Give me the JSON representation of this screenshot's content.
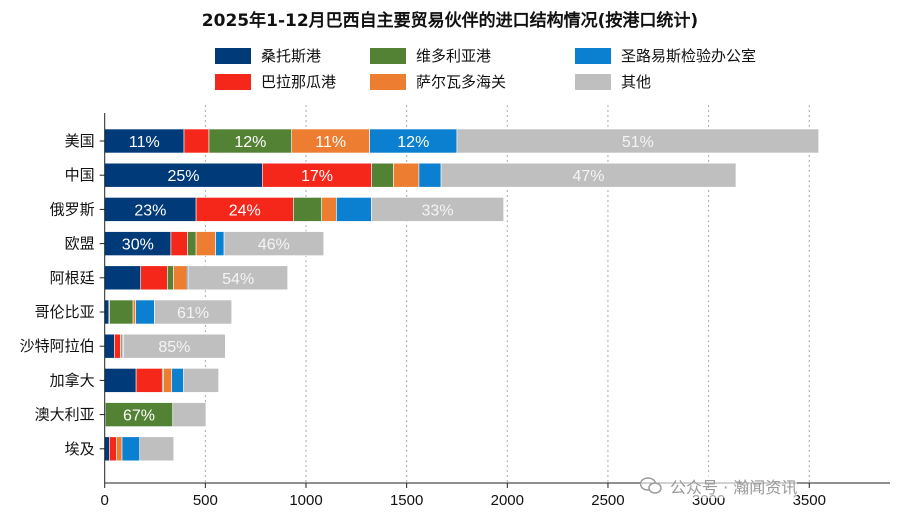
{
  "chart_data": {
    "type": "bar",
    "orientation": "horizontal",
    "stacked": true,
    "title": "2025年1-12月巴西自主要贸易伙伴的进口结构情况(按港口统计)",
    "xlabel": "",
    "ylabel": "",
    "xlim": [
      0,
      3500
    ],
    "xticks": [
      "0",
      "500",
      "1000",
      "1500",
      "2000",
      "2500",
      "3000",
      "3500"
    ],
    "grid": "vertical dotted",
    "legend": "top",
    "categories": [
      "美国",
      "中国",
      "俄罗斯",
      "欧盟",
      "阿根廷",
      "哥伦比亚",
      "沙特阿拉伯",
      "加拿大",
      "澳大利亚",
      "埃及"
    ],
    "series": [
      {
        "name": "桑托斯港",
        "color": "#003a78",
        "values": [
          394,
          783,
          454,
          329,
          179,
          21,
          48,
          156,
          1,
          23
        ],
        "labels": [
          "11%",
          "25%",
          "23%",
          "30%",
          "",
          "",
          "",
          "",
          "",
          ""
        ]
      },
      {
        "name": "巴拉那瓜港",
        "color": "#f5271b",
        "values": [
          124,
          543,
          483,
          83,
          132,
          3,
          31,
          130,
          2,
          35
        ],
        "labels": [
          "",
          "17%",
          "24%",
          "",
          "",
          "",
          "",
          "",
          "",
          ""
        ]
      },
      {
        "name": "维多利亚港",
        "color": "#548235",
        "values": [
          411,
          108,
          141,
          42,
          30,
          117,
          1,
          7,
          335,
          0
        ],
        "labels": [
          "12%",
          "",
          "",
          "",
          "",
          "",
          "",
          "",
          "67%",
          ""
        ]
      },
      {
        "name": "萨尔瓦多海关",
        "color": "#ed7d31",
        "values": [
          387,
          127,
          73,
          97,
          69,
          13,
          8,
          40,
          0,
          28
        ],
        "labels": [
          "11%",
          "",
          "",
          "",
          "",
          "",
          "",
          "",
          "",
          ""
        ]
      },
      {
        "name": "圣路易斯检验办公室",
        "color": "#0b7fd0",
        "values": [
          434,
          110,
          174,
          42,
          7,
          93,
          5,
          59,
          0,
          88
        ],
        "labels": [
          "12%",
          "",
          "",
          "",
          "",
          "",
          "",
          "",
          "",
          ""
        ]
      },
      {
        "name": "其他",
        "color": "#bfbfbf",
        "values": [
          1797,
          1465,
          657,
          495,
          492,
          384,
          506,
          174,
          165,
          169
        ],
        "labels": [
          "51%",
          "47%",
          "33%",
          "46%",
          "54%",
          "61%",
          "85%",
          "",
          "",
          ""
        ]
      }
    ],
    "legend_order": [
      0,
      2,
      4,
      1,
      3,
      5
    ]
  },
  "watermark": {
    "text": "公众号 · 瀚闻资讯",
    "icon": "wechat-icon"
  }
}
